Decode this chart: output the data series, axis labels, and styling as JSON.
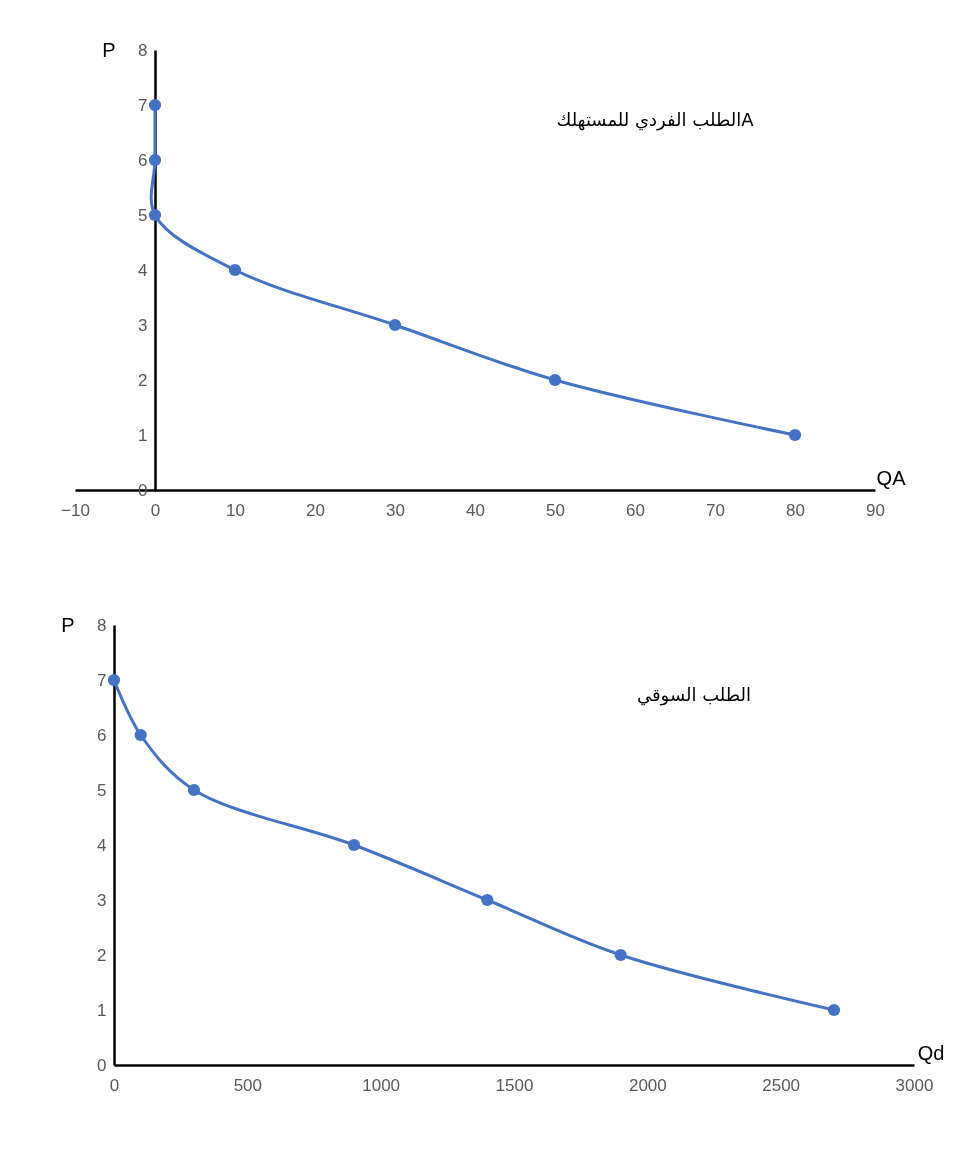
{
  "chart_data": [
    {
      "type": "line",
      "title": "الطلب الفردي للمستهلكA",
      "xlabel": "QA",
      "ylabel": "P",
      "x": [
        0,
        0,
        0,
        10,
        30,
        50,
        80
      ],
      "series": [
        {
          "color": "#4472c4",
          "values": [
            7,
            6,
            5,
            4,
            3,
            2,
            1
          ]
        }
      ],
      "xlim": [
        -10,
        90
      ],
      "xticks": [
        -10,
        0,
        10,
        20,
        30,
        40,
        50,
        60,
        70,
        80,
        90
      ],
      "ylim": [
        0,
        8
      ],
      "yticks": [
        0,
        1,
        2,
        3,
        4,
        5,
        6,
        7,
        8
      ],
      "grid": false,
      "marker": "circle",
      "line_style": "solid"
    },
    {
      "type": "line",
      "title": "الطلب السوقي",
      "xlabel": "Qd",
      "ylabel": "P",
      "x": [
        0,
        100,
        300,
        900,
        1400,
        1900,
        2700
      ],
      "series": [
        {
          "color": "#4472c4",
          "values": [
            7,
            6,
            5,
            4,
            3,
            2,
            1
          ]
        }
      ],
      "xlim": [
        0,
        3000
      ],
      "xticks": [
        0,
        500,
        1000,
        1500,
        2000,
        2500,
        3000
      ],
      "ylim": [
        0,
        8
      ],
      "yticks": [
        0,
        1,
        2,
        3,
        4,
        5,
        6,
        7,
        8
      ],
      "grid": false,
      "marker": "circle",
      "line_style": "solid"
    }
  ]
}
